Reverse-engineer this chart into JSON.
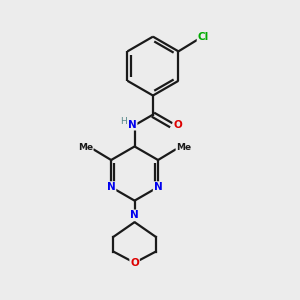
{
  "background_color": "#ececec",
  "bond_color": "#1a1a1a",
  "N_color": "#0000ee",
  "O_color": "#dd0000",
  "Cl_color": "#00aa00",
  "H_color": "#558888",
  "line_width": 1.6,
  "figsize": [
    3.0,
    3.0
  ],
  "dpi": 100,
  "xlim": [
    0,
    10
  ],
  "ylim": [
    0,
    10
  ]
}
